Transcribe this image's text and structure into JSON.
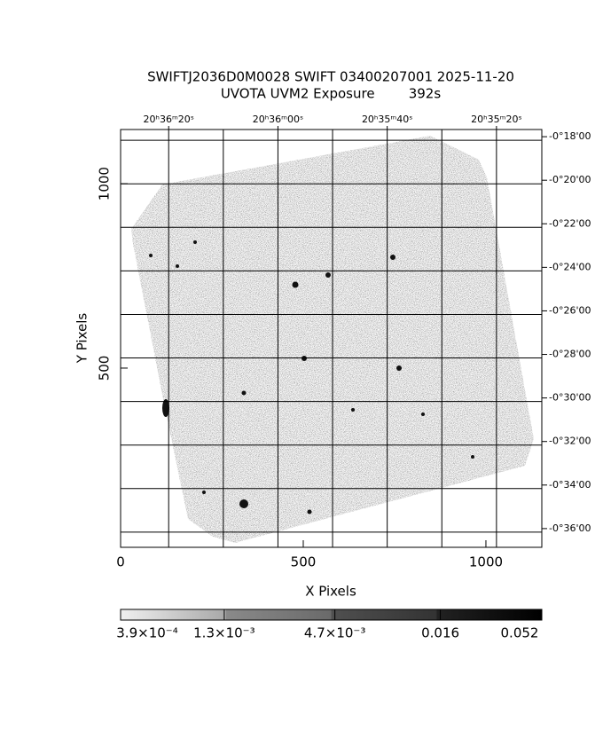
{
  "chart_data": {
    "type": "image",
    "title": "SWIFTJ2036D0M0028 SWIFT 03400207001 2025-11-20",
    "subtitle": "UVOTA UVM2 Exposure        392s",
    "x_label": "X Pixels",
    "y_label": "Y Pixels",
    "xlim": [
      0,
      1153
    ],
    "ylim": [
      14,
      1147
    ],
    "xticks": [
      0,
      500,
      1000
    ],
    "yticks": [
      500,
      1000
    ],
    "x2lim": [
      2188.8,
      2111.7
    ],
    "x2ticks": [
      {
        "value": 2180,
        "label": "20ʰ36ᵐ20ˢ"
      },
      {
        "value": 2160,
        "label": "20ʰ36ᵐ00ˢ"
      },
      {
        "value": 2140,
        "label": "20ʰ35ᵐ40ˢ"
      },
      {
        "value": 2120,
        "label": "20ʰ35ᵐ20ˢ"
      }
    ],
    "x2grid": [
      2180,
      2170,
      2160,
      2150,
      2140,
      2130,
      2120
    ],
    "y2lim": [
      -36.86,
      -17.67
    ],
    "y2ticks": [
      {
        "value": -18,
        "label": "-0°18'00"
      },
      {
        "value": -20,
        "label": "-0°20'00"
      },
      {
        "value": -22,
        "label": "-0°22'00"
      },
      {
        "value": -24,
        "label": "-0°24'00"
      },
      {
        "value": -26,
        "label": "-0°26'00"
      },
      {
        "value": -28,
        "label": "-0°28'00"
      },
      {
        "value": -30,
        "label": "-0°30'00"
      },
      {
        "value": -32,
        "label": "-0°32'00"
      },
      {
        "value": -34,
        "label": "-0°34'00"
      },
      {
        "value": -36,
        "label": "-0°36'00"
      }
    ],
    "colorbar_log": true,
    "clim": [
      0.00039,
      0.052
    ],
    "cticks": [
      {
        "value": 0.00039,
        "label": "3.9×10⁻⁴"
      },
      {
        "value": 0.0013,
        "label": "1.3×10⁻³"
      },
      {
        "value": 0.0047,
        "label": "4.7×10⁻³"
      },
      {
        "value": 0.016,
        "label": "0.016"
      },
      {
        "value": 0.052,
        "label": "0.052"
      }
    ],
    "grid": true
  }
}
